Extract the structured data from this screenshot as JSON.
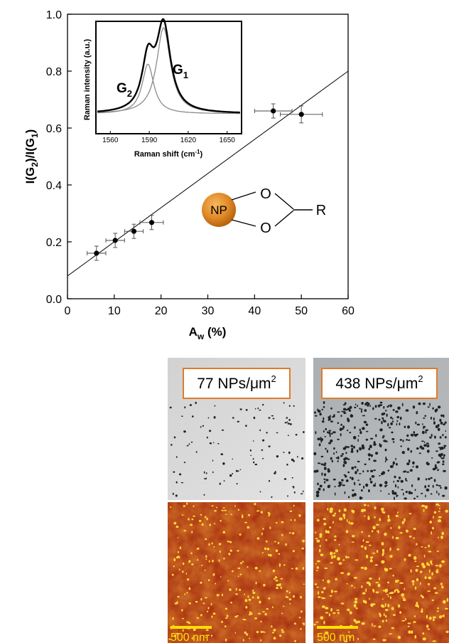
{
  "chart_data": [
    {
      "type": "scatter",
      "title": "",
      "xlabel_main": "A",
      "xlabel_sub": "w",
      "xlabel_unit": " (%)",
      "ylabel": "I(G2)/I(G1)",
      "xlim": [
        0,
        60
      ],
      "ylim": [
        0,
        1.0
      ],
      "xticks": [
        "0",
        "10",
        "20",
        "30",
        "40",
        "50",
        "60"
      ],
      "yticks": [
        "0.0",
        "0.2",
        "0.4",
        "0.6",
        "0.8",
        "1.0"
      ],
      "points": [
        {
          "x": 6.2,
          "y": 0.16,
          "xerr": 2.0,
          "yerr": 0.025
        },
        {
          "x": 10.2,
          "y": 0.205,
          "xerr": 2.0,
          "yerr": 0.025
        },
        {
          "x": 14.2,
          "y": 0.237,
          "xerr": 2.0,
          "yerr": 0.025
        },
        {
          "x": 18.0,
          "y": 0.268,
          "xerr": 2.5,
          "yerr": 0.025
        },
        {
          "x": 44.0,
          "y": 0.66,
          "xerr": 4.0,
          "yerr": 0.025
        },
        {
          "x": 50.0,
          "y": 0.648,
          "xerr": 4.5,
          "yerr": 0.03
        }
      ],
      "fit_line": {
        "x": [
          0,
          60
        ],
        "y": [
          0.08,
          0.8
        ]
      },
      "grid": false
    },
    {
      "type": "line",
      "xlabel": "Raman shift (cm",
      "xlabel_sup": "-1",
      "xlabel_end": ")",
      "ylabel": "Raman intensity (a.u.)",
      "xlim": [
        1550,
        1660
      ],
      "xticks": [
        "1560",
        "1590",
        "1620",
        "1650"
      ],
      "series": [
        {
          "name": "G1",
          "center": 1601,
          "width": 6.5,
          "height": 0.78
        },
        {
          "name": "G2",
          "center": 1589,
          "width": 5.5,
          "height": 0.45
        }
      ]
    }
  ],
  "molecule": {
    "np": "NP",
    "o_top": "O",
    "o_bottom": "O",
    "r": "R"
  },
  "micrographs": [
    {
      "label_num": "77 NPs/",
      "label_unit": "μm",
      "label_sup": "2",
      "count": 77
    },
    {
      "label_num": "438 NPs/",
      "label_unit": "μm",
      "label_sup": "2",
      "count": 438
    }
  ],
  "scale_bars": [
    "500 nm",
    "500 nm"
  ],
  "colors": {
    "marker": "#000000",
    "np_fill": "#e08a28",
    "label_border": "#e07b2a",
    "afm_dark": "#a32a0e",
    "afm_bright": "#ffd83a",
    "scale_bar": "#ffe000"
  }
}
